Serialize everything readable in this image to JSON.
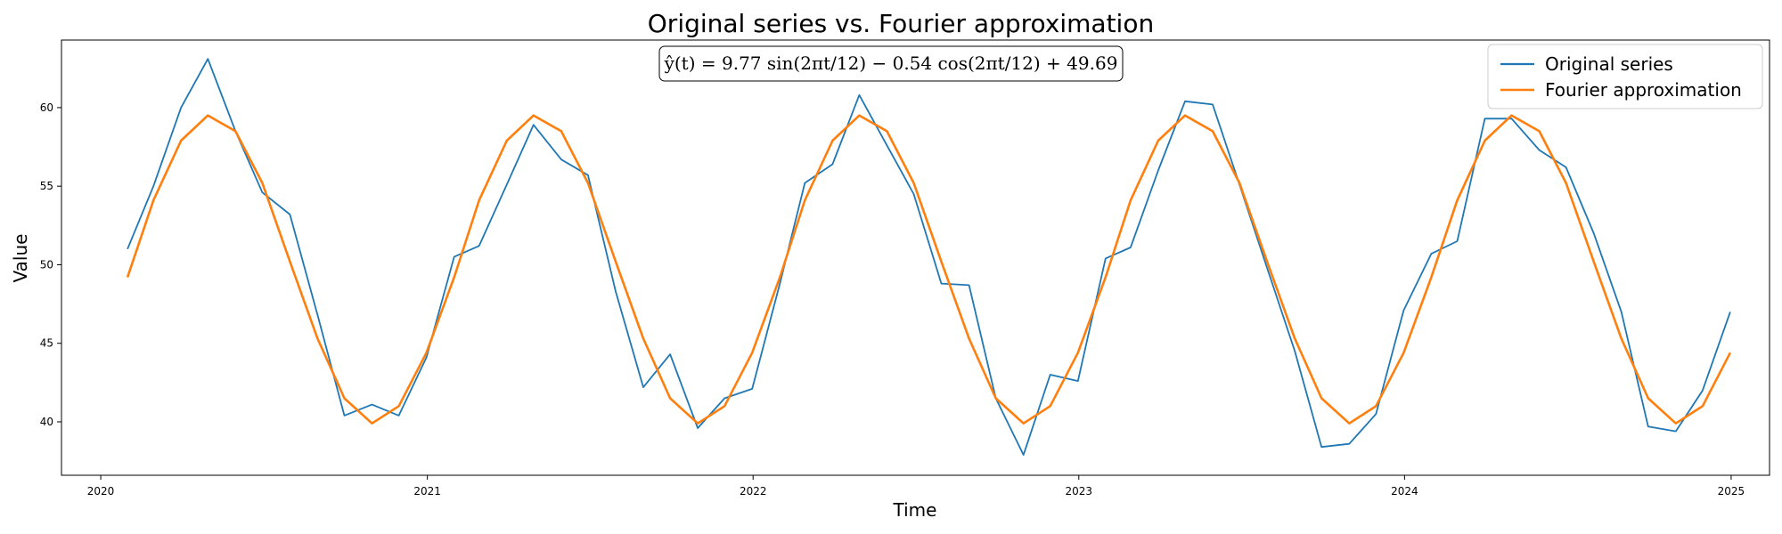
{
  "chart_data": {
    "type": "line",
    "title": "Original series vs. Fourier approximation",
    "xlabel": "Time",
    "ylabel": "Value",
    "annotation": "ŷ(t) = 9.77 sin(2πt/12) − 0.54 cos(2πt/12) + 49.69",
    "xlim": [
      "2019-11-18",
      "2025-02-13"
    ],
    "ylim": [
      36.6,
      64.3
    ],
    "x_ticks": [
      "2020",
      "2021",
      "2022",
      "2023",
      "2024",
      "2025"
    ],
    "y_ticks": [
      40,
      45,
      50,
      55,
      60
    ],
    "grid": false,
    "legend_position": "top-right",
    "x": [
      "2020-01-31",
      "2020-02-29",
      "2020-03-31",
      "2020-04-30",
      "2020-05-31",
      "2020-06-30",
      "2020-07-31",
      "2020-08-31",
      "2020-09-30",
      "2020-10-31",
      "2020-11-30",
      "2020-12-31",
      "2021-01-31",
      "2021-02-28",
      "2021-03-31",
      "2021-04-30",
      "2021-05-31",
      "2021-06-30",
      "2021-07-31",
      "2021-08-31",
      "2021-09-30",
      "2021-10-31",
      "2021-11-30",
      "2021-12-31",
      "2022-01-31",
      "2022-02-28",
      "2022-03-31",
      "2022-04-30",
      "2022-05-31",
      "2022-06-30",
      "2022-07-31",
      "2022-08-31",
      "2022-09-30",
      "2022-10-31",
      "2022-11-30",
      "2022-12-31",
      "2023-01-31",
      "2023-02-28",
      "2023-03-31",
      "2023-04-30",
      "2023-05-31",
      "2023-06-30",
      "2023-07-31",
      "2023-08-31",
      "2023-09-30",
      "2023-10-31",
      "2023-11-30",
      "2023-12-31",
      "2024-01-31",
      "2024-02-29",
      "2024-03-31",
      "2024-04-30",
      "2024-05-31",
      "2024-06-30",
      "2024-07-31",
      "2024-08-31",
      "2024-09-30",
      "2024-10-31",
      "2024-11-30",
      "2024-12-31"
    ],
    "series": [
      {
        "name": "Original series",
        "color": "#1f77b4",
        "values": [
          51.0,
          55.0,
          60.0,
          63.1,
          58.5,
          54.6,
          53.2,
          46.8,
          40.4,
          41.1,
          40.4,
          44.1,
          50.5,
          51.2,
          55.1,
          58.9,
          56.7,
          55.7,
          48.3,
          42.2,
          44.3,
          39.6,
          41.5,
          42.1,
          48.8,
          55.2,
          56.4,
          60.8,
          57.6,
          54.5,
          48.8,
          48.7,
          41.5,
          37.9,
          43.0,
          42.6,
          50.4,
          51.1,
          56.0,
          60.4,
          60.2,
          55.1,
          49.8,
          44.5,
          38.4,
          38.6,
          40.5,
          47.1,
          50.7,
          51.5,
          59.3,
          59.3,
          57.3,
          56.2,
          52.0,
          47.0,
          39.7,
          39.4,
          42.0,
          47.0
        ]
      },
      {
        "name": "Fourier approximation",
        "color": "#ff7f0e",
        "values": [
          49.2,
          54.1,
          57.9,
          59.5,
          58.5,
          55.2,
          50.2,
          45.3,
          41.5,
          39.9,
          41.0,
          44.4,
          49.2,
          54.1,
          57.9,
          59.5,
          58.5,
          55.2,
          50.2,
          45.3,
          41.5,
          39.9,
          41.0,
          44.4,
          49.2,
          54.1,
          57.9,
          59.5,
          58.5,
          55.2,
          50.2,
          45.3,
          41.5,
          39.9,
          41.0,
          44.4,
          49.2,
          54.1,
          57.9,
          59.5,
          58.5,
          55.2,
          50.2,
          45.3,
          41.5,
          39.9,
          41.0,
          44.4,
          49.2,
          54.1,
          57.9,
          59.5,
          58.5,
          55.2,
          50.2,
          45.3,
          41.5,
          39.9,
          41.0,
          44.4
        ]
      }
    ]
  }
}
